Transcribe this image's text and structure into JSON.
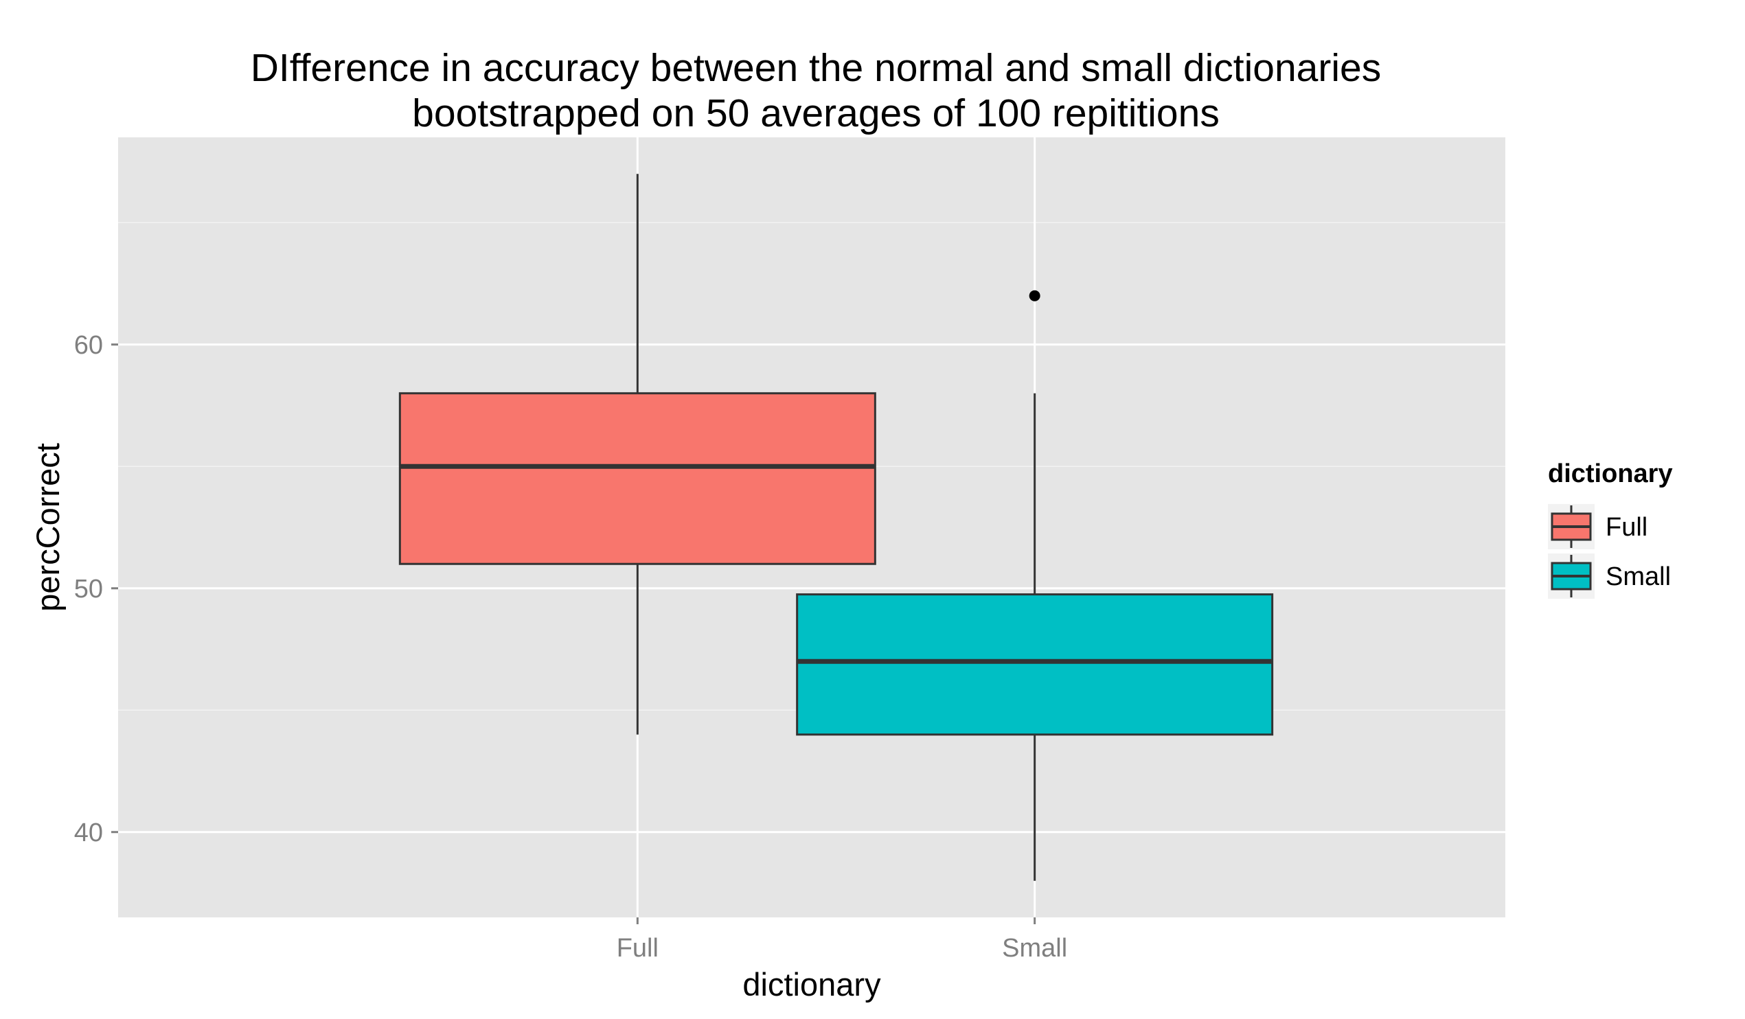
{
  "chart_data": {
    "type": "boxplot",
    "title": [
      "DIfference in accuracy between the normal and small dictionaries",
      "bootstrapped on 50 averages of 100 repititions"
    ],
    "xlabel": "dictionary",
    "ylabel": "percCorrect",
    "categories": [
      "Full",
      "Small"
    ],
    "ylim": [
      36.5,
      68.5
    ],
    "yticks": [
      40,
      50,
      60
    ],
    "grid": true,
    "background": "#e5e5e5",
    "legend": {
      "title": "dictionary",
      "position": "right",
      "entries": [
        "Full",
        "Small"
      ]
    },
    "colors": {
      "Full": "#f8766d",
      "Small": "#00bfc4"
    },
    "boxes": [
      {
        "category": "Full",
        "min": 44,
        "q1": 51,
        "median": 55,
        "q3": 58,
        "max": 67,
        "outliers": []
      },
      {
        "category": "Small",
        "min": 38,
        "q1": 44,
        "median": 47,
        "q3": 49.75,
        "max": 58,
        "outliers": [
          62
        ]
      }
    ]
  }
}
